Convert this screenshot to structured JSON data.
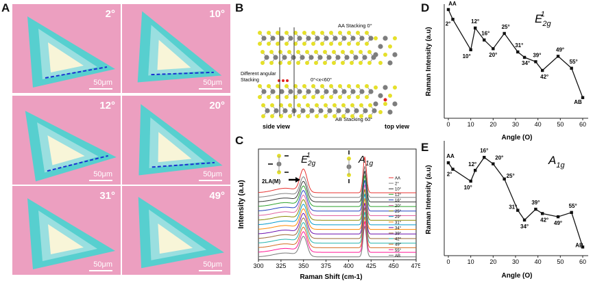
{
  "panels": {
    "a": {
      "letter": "A",
      "tiles": [
        {
          "angle": "2°",
          "scale": "50μm"
        },
        {
          "angle": "10°",
          "scale": "50μm"
        },
        {
          "angle": "12°",
          "scale": "50μm"
        },
        {
          "angle": "20°",
          "scale": "50μm"
        },
        {
          "angle": "31°",
          "scale": "50μm"
        },
        {
          "angle": "49°",
          "scale": "50μm"
        }
      ]
    },
    "b": {
      "letter": "B",
      "aa_label": "AA Stacking  0°",
      "diff_label_1": "Different angular",
      "diff_label_2": "Stacking",
      "range_label": "0°<x<60°",
      "ab_label": "AB Stacking  60°",
      "side_view": "side view",
      "top_view": "top view"
    },
    "c": {
      "letter": "C",
      "peak1": "E",
      "peak1_sub": "2g",
      "peak1_sup": "1",
      "peak2": "A",
      "peak2_sub": "1g",
      "mode_label": "2LA(M)",
      "legend": [
        "AA",
        "2°",
        "10°",
        "12°",
        "16°",
        "20°",
        "25°",
        "29°",
        "31°",
        "34°",
        "39°",
        "42°",
        "49°",
        "55°",
        "AB"
      ]
    },
    "d": {
      "letter": "D",
      "mode": "E",
      "mode_sub": "2g",
      "mode_sup": "1"
    },
    "e": {
      "letter": "E",
      "mode": "A",
      "mode_sub": "1g"
    }
  },
  "colors": {
    "pink": "#ec9fc0",
    "teal": "#57cfcf",
    "sulfur": "#e5e02a",
    "metal": "#7d7d7d"
  },
  "chart_data": [
    {
      "id": "C",
      "type": "line",
      "xlabel": "Raman Shift (cm-1)",
      "ylabel": "Intensity (a.u)",
      "xlim": [
        300,
        475
      ],
      "xticks": [
        300,
        325,
        350,
        375,
        400,
        425,
        450,
        475
      ],
      "series_names": [
        "AA",
        "2°",
        "10°",
        "12°",
        "16°",
        "20°",
        "25°",
        "29°",
        "31°",
        "34°",
        "39°",
        "42°",
        "49°",
        "55°",
        "AB"
      ],
      "series_colors": [
        "#e8312f",
        "#808080",
        "#333333",
        "#2aa02a",
        "#2040c0",
        "#e060a0",
        "#888800",
        "#0099cc",
        "#ff8800",
        "#6a0dad",
        "#996633",
        "#20b2aa",
        "#d2691e",
        "#ff1493",
        "#777777"
      ],
      "peaks": [
        350,
        418
      ]
    },
    {
      "id": "D",
      "type": "line",
      "xlabel": "Angle (O)",
      "ylabel": "Raman Intensity (a.u)",
      "xlim": [
        0,
        60
      ],
      "xticks": [
        0,
        10,
        20,
        30,
        40,
        50,
        60
      ],
      "x": [
        0,
        2,
        10,
        12,
        16,
        20,
        25,
        31,
        34,
        39,
        42,
        49,
        55,
        60
      ],
      "y": [
        10.0,
        9.1,
        6.3,
        8.3,
        7.2,
        6.4,
        7.8,
        6.1,
        5.6,
        5.2,
        4.4,
        5.7,
        4.6,
        1.9
      ],
      "labels": [
        "AA",
        "2°",
        "10°",
        "12°",
        "16°",
        "20°",
        "25°",
        "31°",
        "34°",
        "39°",
        "42°",
        "49°",
        "55°",
        "AB"
      ],
      "ylim": [
        0,
        10.5
      ]
    },
    {
      "id": "E",
      "type": "line",
      "xlabel": "Angle (O)",
      "ylabel": "Raman Intensity (a.u)",
      "xlim": [
        0,
        60
      ],
      "xticks": [
        0,
        10,
        20,
        30,
        40,
        50,
        60
      ],
      "x": [
        0,
        2,
        10,
        12,
        16,
        20,
        25,
        31,
        34,
        39,
        42,
        49,
        55,
        60
      ],
      "y": [
        8.6,
        8.0,
        6.9,
        7.9,
        9.1,
        8.5,
        7.1,
        4.2,
        3.3,
        4.3,
        3.9,
        3.6,
        4.0,
        0.8
      ],
      "labels": [
        "AA",
        "2°",
        "10°",
        "12°",
        "16°",
        "20°",
        "25°",
        "31°",
        "34°",
        "39°",
        "42°",
        "49°",
        "55°",
        "AB"
      ],
      "ylim": [
        0,
        10
      ]
    }
  ]
}
